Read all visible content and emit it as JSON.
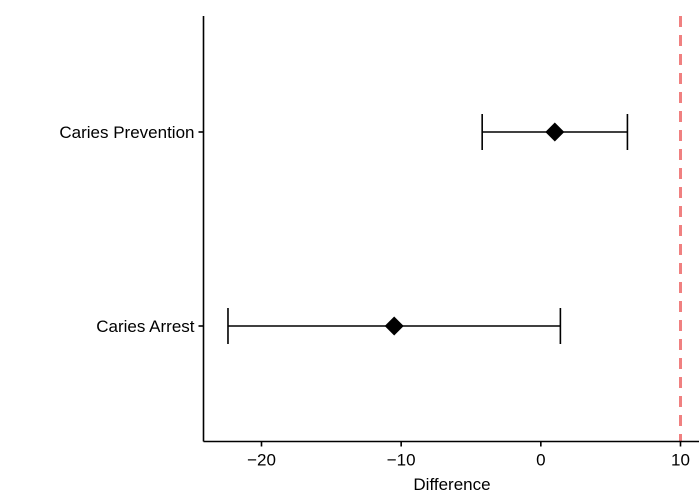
{
  "chart_data": {
    "type": "forest",
    "title": "",
    "xlabel": "Difference",
    "ylabel": "",
    "xlim": [
      -24,
      11
    ],
    "x_ticks": [
      -20,
      -10,
      0,
      10
    ],
    "x_tick_labels": [
      "−20",
      "−10",
      "0",
      "10"
    ],
    "categories": [
      "Caries Prevention",
      "Caries Arrest"
    ],
    "estimates": [
      1.0,
      -10.5
    ],
    "ci_lower": [
      -4.2,
      -22.4
    ],
    "ci_upper": [
      6.2,
      1.4
    ],
    "reference_line": {
      "x": 10,
      "style": "dashed",
      "color": "#f08080"
    },
    "marker": "diamond",
    "marker_color": "#000000",
    "grid": false,
    "legend": "none"
  }
}
